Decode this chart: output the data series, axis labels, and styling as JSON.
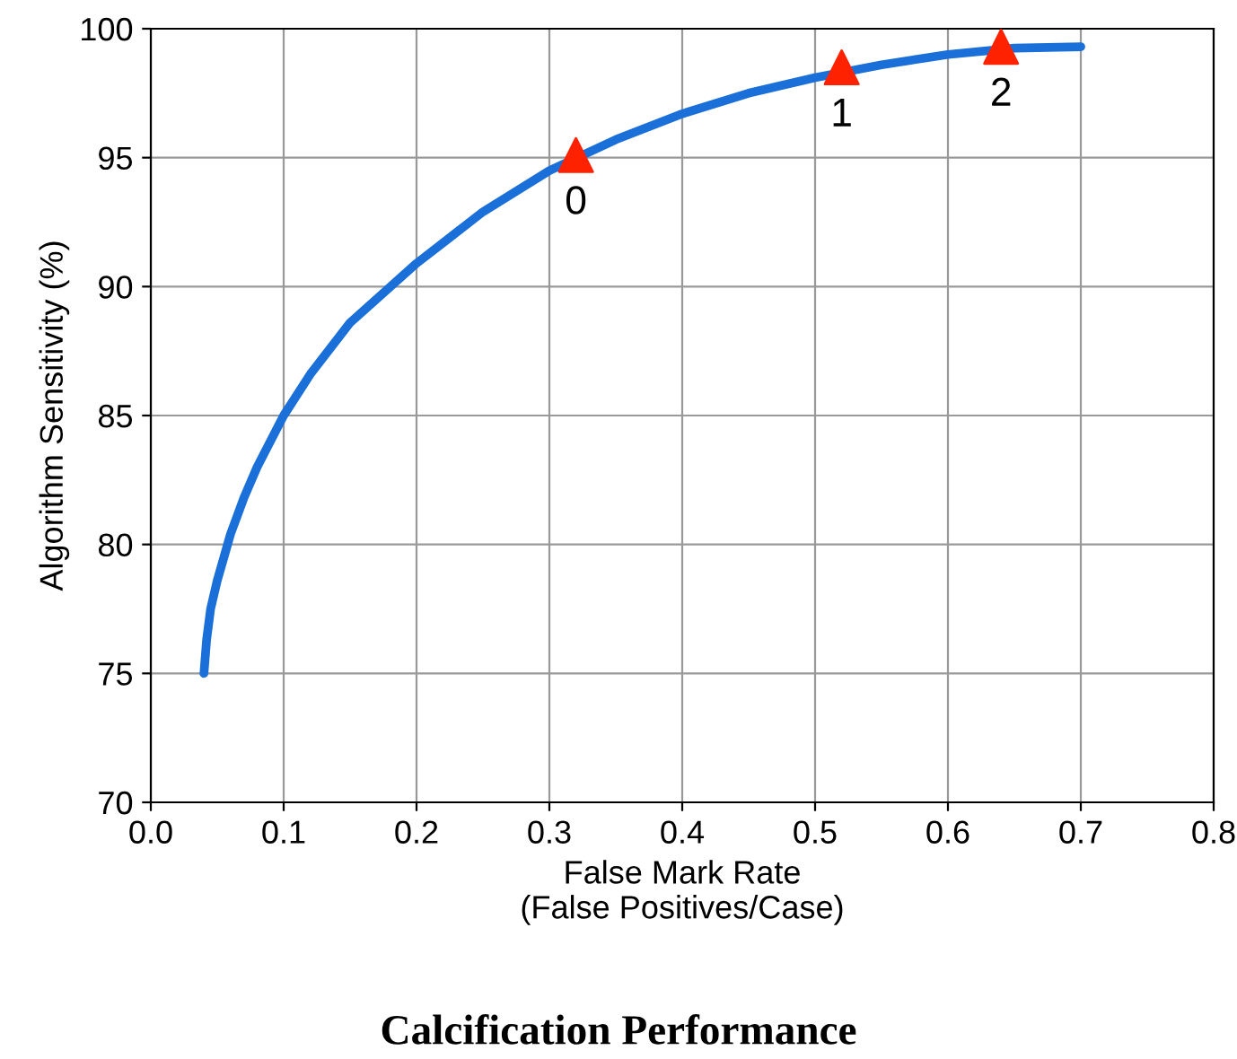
{
  "chart_data": {
    "type": "line",
    "title": "Calcification Performance",
    "xlabel": "False Mark Rate\n(False Positives/Case)",
    "ylabel": "Algorithm Sensitivity (%)",
    "xlim": [
      0.0,
      0.8
    ],
    "xticks": [
      {
        "value": 0,
        "label": "0.0"
      },
      0.1,
      0.2,
      0.3,
      0.4,
      0.5,
      0.6,
      0.7,
      0.8
    ],
    "ylim": [
      70,
      100
    ],
    "yticks": [
      70,
      75,
      80,
      85,
      90,
      95,
      100
    ],
    "grid": true,
    "series": [
      {
        "color": "#1a6fd8",
        "marker": "none",
        "x": [
          0.04,
          0.042,
          0.045,
          0.05,
          0.06,
          0.07,
          0.08,
          0.1,
          0.12,
          0.15,
          0.2,
          0.25,
          0.3,
          0.35,
          0.4,
          0.45,
          0.5,
          0.55,
          0.6,
          0.65,
          0.7
        ],
        "values": [
          75,
          76.3,
          77.5,
          78.6,
          80.4,
          81.8,
          83,
          85,
          86.6,
          88.6,
          90.9,
          92.9,
          94.5,
          95.7,
          96.7,
          97.5,
          98.1,
          98.6,
          99,
          99.25,
          99.3
        ]
      },
      {
        "type": "scatter",
        "color": "#ff2200",
        "marker": "triangle",
        "x": [
          0.32,
          0.52,
          0.64
        ],
        "values": [
          95.1,
          98.5,
          99.3
        ]
      }
    ],
    "annotations": [
      {
        "text": "0",
        "x": 0.32,
        "y": 95.1
      },
      {
        "text": "1",
        "x": 0.52,
        "y": 98.5
      },
      {
        "text": "2",
        "x": 0.64,
        "y": 99.3
      }
    ]
  }
}
